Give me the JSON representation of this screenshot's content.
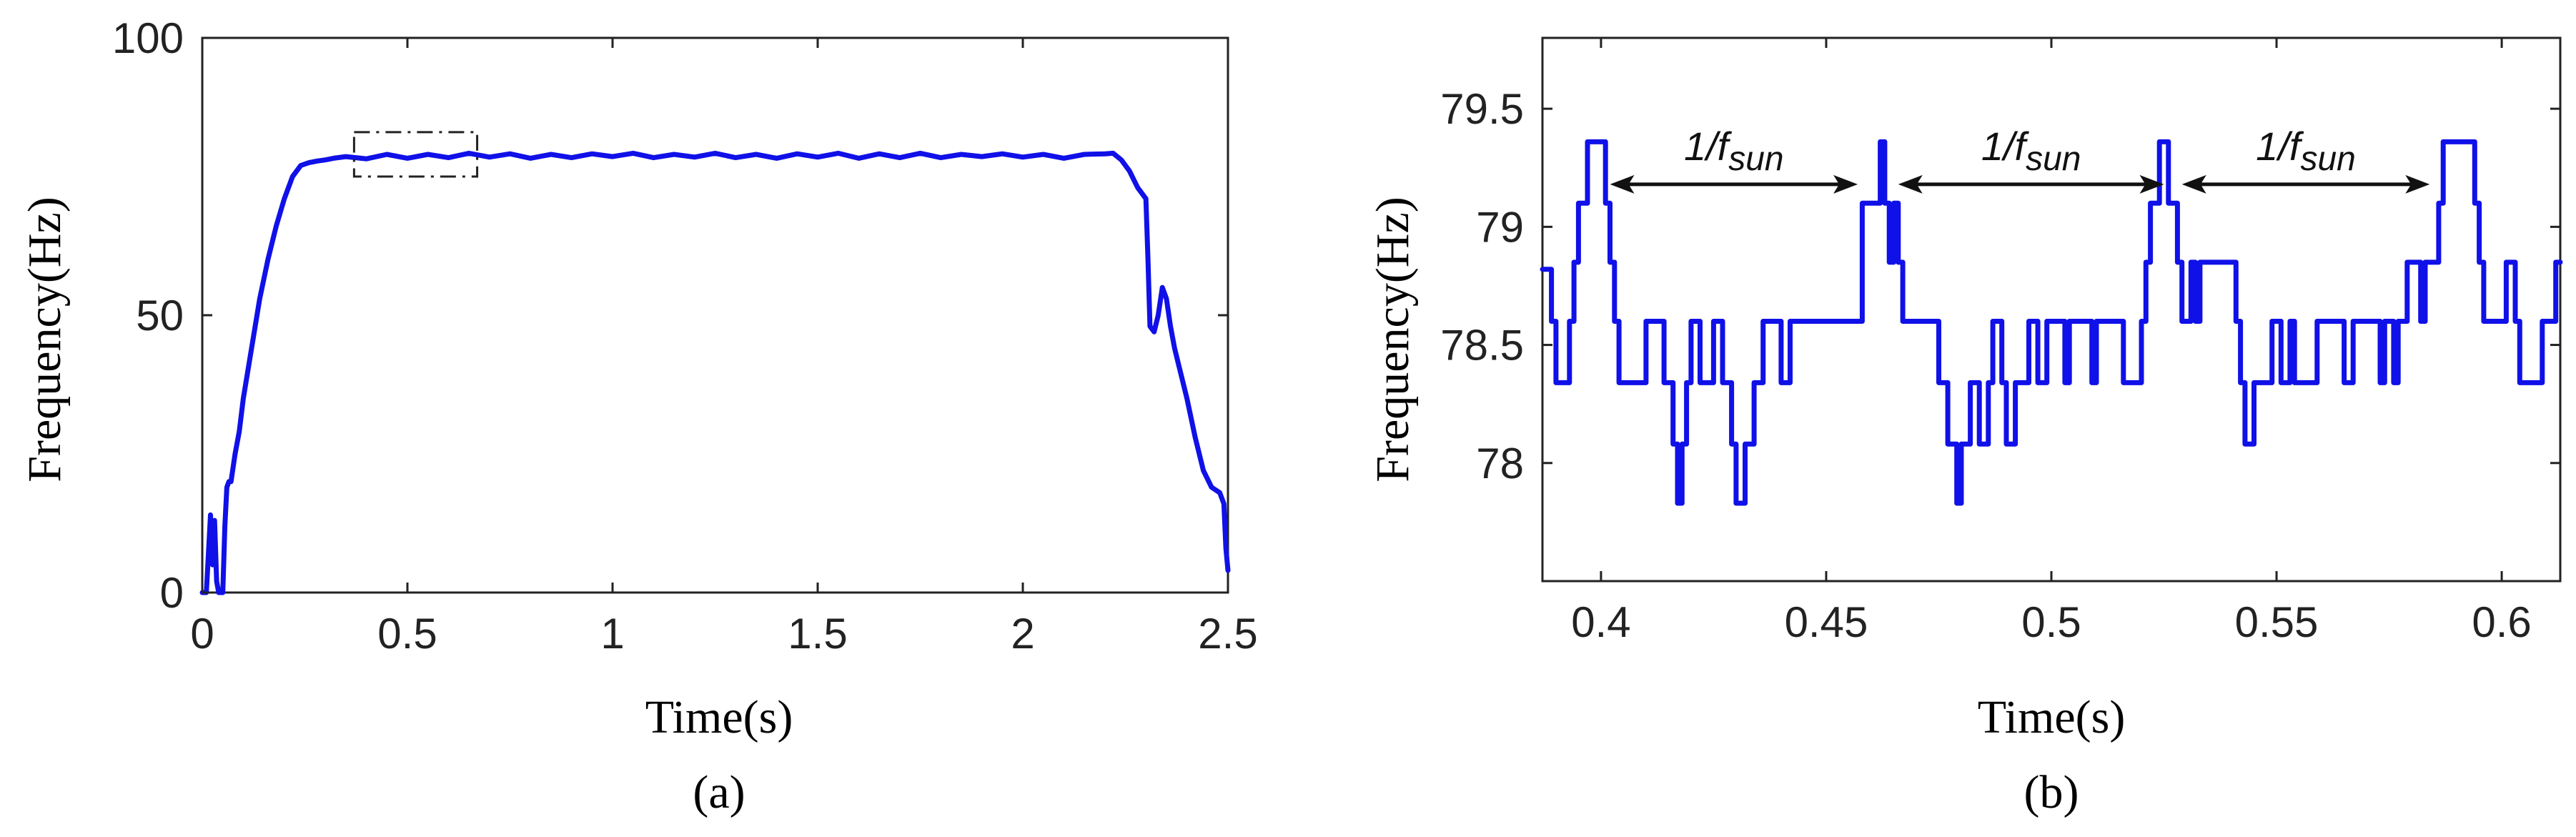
{
  "chart_data": [
    {
      "type": "line",
      "caption": "(a)",
      "xlabel": "Time(s)",
      "ylabel": "Frequency(Hz)",
      "xlim": [
        0,
        2.5
      ],
      "ylim": [
        0,
        100
      ],
      "xticks": [
        0,
        0.5,
        1,
        1.5,
        2,
        2.5
      ],
      "xtick_labels": [
        "0",
        "0.5",
        "1",
        "1.5",
        "2",
        "2.5"
      ],
      "yticks": [
        0,
        50,
        100
      ],
      "ytick_labels": [
        "0",
        "50",
        "100"
      ],
      "grid": false,
      "zoom_box": {
        "x": [
          0.37,
          0.67
        ],
        "y": [
          75,
          83
        ],
        "style": "dash-dot"
      },
      "series": [
        {
          "color": "#1010e8",
          "x": [
            0,
            0.01,
            0.02,
            0.025,
            0.03,
            0.035,
            0.04,
            0.045,
            0.05,
            0.055,
            0.06,
            0.065,
            0.07,
            0.08,
            0.09,
            0.1,
            0.12,
            0.14,
            0.16,
            0.18,
            0.2,
            0.22,
            0.24,
            0.26,
            0.28,
            0.3,
            0.32,
            0.35,
            0.4,
            0.45,
            0.5,
            0.55,
            0.6,
            0.65,
            0.7,
            0.75,
            0.8,
            0.85,
            0.9,
            0.95,
            1.0,
            1.05,
            1.1,
            1.15,
            1.2,
            1.25,
            1.3,
            1.35,
            1.4,
            1.45,
            1.5,
            1.55,
            1.6,
            1.65,
            1.7,
            1.75,
            1.8,
            1.85,
            1.9,
            1.95,
            2.0,
            2.05,
            2.1,
            2.15,
            2.2,
            2.22,
            2.24,
            2.26,
            2.28,
            2.3,
            2.305,
            2.31,
            2.32,
            2.33,
            2.34,
            2.35,
            2.36,
            2.37,
            2.38,
            2.4,
            2.42,
            2.44,
            2.46,
            2.48,
            2.49,
            2.495,
            2.5
          ],
          "y": [
            0,
            0,
            14,
            5,
            13,
            2,
            0,
            0,
            0,
            12,
            19,
            20,
            20,
            25,
            29,
            35,
            44,
            53,
            60,
            66,
            71,
            75,
            77,
            77.5,
            77.8,
            78,
            78.3,
            78.6,
            78.2,
            79,
            78.3,
            79,
            78.4,
            79.2,
            78.5,
            79.1,
            78.3,
            79,
            78.4,
            79.1,
            78.6,
            79.2,
            78.4,
            79,
            78.5,
            79.2,
            78.4,
            79,
            78.3,
            79.1,
            78.5,
            79.2,
            78.3,
            79.1,
            78.4,
            79.2,
            78.4,
            79,
            78.6,
            79.1,
            78.5,
            79,
            78.3,
            79,
            79.1,
            79.2,
            78,
            76,
            73,
            71,
            60,
            48,
            47,
            50,
            55,
            53,
            48,
            44,
            41,
            35,
            28,
            22,
            19,
            18,
            16,
            8,
            4
          ]
        }
      ]
    },
    {
      "type": "line",
      "caption": "(b)",
      "xlabel": "Time(s)",
      "ylabel": "Frequency(Hz)",
      "xlim": [
        0.387,
        0.613
      ],
      "ylim": [
        77.5,
        79.8
      ],
      "xticks": [
        0.4,
        0.45,
        0.5,
        0.55,
        0.6
      ],
      "xtick_labels": [
        "0.4",
        "0.45",
        "0.5",
        "0.55",
        "0.6"
      ],
      "yticks": [
        78,
        78.5,
        79,
        79.5
      ],
      "ytick_labels": [
        "78",
        "78.5",
        "79",
        "79.5"
      ],
      "grid": false,
      "annotations": [
        {
          "text": "1/f",
          "subscript": "sun",
          "x_from": 0.402,
          "x_to": 0.457,
          "y": 79.18
        },
        {
          "text": "1/f",
          "subscript": "sun",
          "x_from": 0.466,
          "x_to": 0.525,
          "y": 79.18
        },
        {
          "text": "1/f",
          "subscript": "sun",
          "x_from": 0.529,
          "x_to": 0.584,
          "y": 79.18
        }
      ],
      "series": [
        {
          "color": "#1010e8",
          "steps": [
            [
              0.387,
              78.82
            ],
            [
              0.389,
              78.6
            ],
            [
              0.39,
              78.34
            ],
            [
              0.393,
              78.6
            ],
            [
              0.394,
              78.85
            ],
            [
              0.395,
              79.1
            ],
            [
              0.397,
              79.36
            ],
            [
              0.401,
              79.1
            ],
            [
              0.402,
              78.85
            ],
            [
              0.403,
              78.6
            ],
            [
              0.404,
              78.34
            ],
            [
              0.41,
              78.6
            ],
            [
              0.414,
              78.34
            ],
            [
              0.416,
              78.08
            ],
            [
              0.417,
              77.83
            ],
            [
              0.418,
              78.08
            ],
            [
              0.419,
              78.34
            ],
            [
              0.42,
              78.6
            ],
            [
              0.422,
              78.34
            ],
            [
              0.425,
              78.6
            ],
            [
              0.427,
              78.34
            ],
            [
              0.429,
              78.08
            ],
            [
              0.43,
              77.83
            ],
            [
              0.432,
              78.08
            ],
            [
              0.434,
              78.34
            ],
            [
              0.436,
              78.6
            ],
            [
              0.44,
              78.34
            ],
            [
              0.442,
              78.6
            ],
            [
              0.458,
              79.1
            ],
            [
              0.462,
              79.36
            ],
            [
              0.463,
              79.1
            ],
            [
              0.464,
              78.85
            ],
            [
              0.465,
              79.1
            ],
            [
              0.466,
              78.85
            ],
            [
              0.467,
              78.6
            ],
            [
              0.475,
              78.34
            ],
            [
              0.477,
              78.08
            ],
            [
              0.479,
              77.83
            ],
            [
              0.48,
              78.08
            ],
            [
              0.482,
              78.34
            ],
            [
              0.484,
              78.08
            ],
            [
              0.486,
              78.34
            ],
            [
              0.487,
              78.6
            ],
            [
              0.489,
              78.34
            ],
            [
              0.49,
              78.08
            ],
            [
              0.492,
              78.34
            ],
            [
              0.495,
              78.6
            ],
            [
              0.497,
              78.34
            ],
            [
              0.499,
              78.6
            ],
            [
              0.503,
              78.34
            ],
            [
              0.504,
              78.6
            ],
            [
              0.509,
              78.34
            ],
            [
              0.51,
              78.6
            ],
            [
              0.516,
              78.34
            ],
            [
              0.52,
              78.6
            ],
            [
              0.521,
              78.85
            ],
            [
              0.522,
              79.1
            ],
            [
              0.524,
              79.36
            ],
            [
              0.526,
              79.1
            ],
            [
              0.528,
              78.85
            ],
            [
              0.529,
              78.6
            ],
            [
              0.531,
              78.85
            ],
            [
              0.532,
              78.6
            ],
            [
              0.533,
              78.85
            ],
            [
              0.541,
              78.6
            ],
            [
              0.542,
              78.34
            ],
            [
              0.543,
              78.08
            ],
            [
              0.545,
              78.34
            ],
            [
              0.549,
              78.6
            ],
            [
              0.551,
              78.34
            ],
            [
              0.553,
              78.6
            ],
            [
              0.554,
              78.34
            ],
            [
              0.559,
              78.6
            ],
            [
              0.565,
              78.34
            ],
            [
              0.567,
              78.6
            ],
            [
              0.573,
              78.34
            ],
            [
              0.574,
              78.6
            ],
            [
              0.576,
              78.34
            ],
            [
              0.577,
              78.6
            ],
            [
              0.579,
              78.85
            ],
            [
              0.582,
              78.6
            ],
            [
              0.583,
              78.85
            ],
            [
              0.586,
              79.1
            ],
            [
              0.587,
              79.36
            ],
            [
              0.594,
              79.1
            ],
            [
              0.595,
              78.85
            ],
            [
              0.596,
              78.6
            ],
            [
              0.601,
              78.85
            ],
            [
              0.603,
              78.6
            ],
            [
              0.604,
              78.34
            ],
            [
              0.609,
              78.6
            ],
            [
              0.612,
              78.85
            ],
            [
              0.613,
              78.85
            ]
          ]
        }
      ]
    }
  ]
}
